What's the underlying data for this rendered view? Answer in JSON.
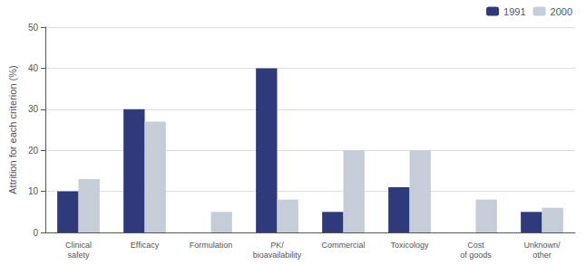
{
  "chart_data": {
    "type": "bar",
    "categories": [
      "Clinical\nsafety",
      "Efficacy",
      "Formulation",
      "PK/\nbioavailability",
      "Commercial",
      "Toxicology",
      "Cost\nof goods",
      "Unknown/\nother"
    ],
    "series": [
      {
        "name": "1991",
        "color": "#2e3a7a",
        "values": [
          10,
          30,
          0,
          40,
          5,
          11,
          0,
          5
        ]
      },
      {
        "name": "2000",
        "color": "#c5cdd8",
        "values": [
          13,
          27,
          5,
          8,
          20,
          20,
          8,
          6
        ]
      }
    ],
    "ylabel": "Attrition for each criterion (%)",
    "ylim": [
      0,
      50
    ],
    "yticks": [
      0,
      10,
      20,
      30,
      40,
      50
    ],
    "grid": true,
    "legend": "upper right"
  }
}
